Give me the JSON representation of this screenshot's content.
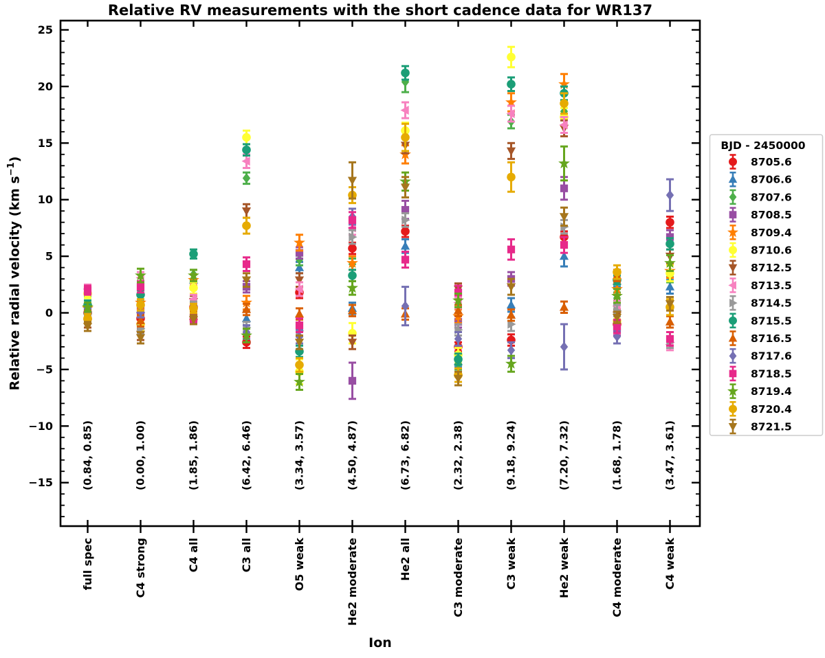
{
  "title": "Relative RV measurements with the short cadence data for WR137",
  "xlabel": "Ion",
  "ylabel": {
    "prefix": "Relative radial velocity (km s",
    "sup": "−1",
    "suffix": ")"
  },
  "legend": {
    "title": "BJD - 2450000",
    "entries": [
      {
        "label": "8705.6",
        "color": "#e41a1c",
        "marker": "circle"
      },
      {
        "label": "8706.6",
        "color": "#377eb8",
        "marker": "triangle-up"
      },
      {
        "label": "8707.6",
        "color": "#4daf4a",
        "marker": "diamond"
      },
      {
        "label": "8708.5",
        "color": "#984ea3",
        "marker": "square"
      },
      {
        "label": "8709.4",
        "color": "#ff7f00",
        "marker": "star"
      },
      {
        "label": "8710.6",
        "color": "#ffff33",
        "marker": "circle"
      },
      {
        "label": "8712.5",
        "color": "#a65628",
        "marker": "triangle-down"
      },
      {
        "label": "8713.5",
        "color": "#f781bf",
        "marker": "triangle-left"
      },
      {
        "label": "8714.5",
        "color": "#999999",
        "marker": "triangle-right"
      },
      {
        "label": "8715.5",
        "color": "#1b9e77",
        "marker": "circle"
      },
      {
        "label": "8716.5",
        "color": "#d95f02",
        "marker": "triangle-up"
      },
      {
        "label": "8717.6",
        "color": "#7570b3",
        "marker": "diamond"
      },
      {
        "label": "8718.5",
        "color": "#e7298a",
        "marker": "square"
      },
      {
        "label": "8719.4",
        "color": "#66a61e",
        "marker": "star"
      },
      {
        "label": "8720.4",
        "color": "#e6ab02",
        "marker": "circle"
      },
      {
        "label": "8721.5",
        "color": "#a6761d",
        "marker": "triangle-down"
      }
    ]
  },
  "chart_data": {
    "type": "scatter",
    "title": "Relative RV measurements with the short cadence data for WR137",
    "xlabel": "Ion",
    "ylabel": "Relative radial velocity (km s^-1)",
    "categories": [
      "full spec",
      "C4 strong",
      "C4 all",
      "C3 all",
      "O5 weak",
      "He2 moderate",
      "He2 all",
      "C3 moderate",
      "C3 weak",
      "He2 weak",
      "C4 moderate",
      "C4 weak"
    ],
    "annotations": [
      "(0.84, 0.85)",
      "(0.00, 1.00)",
      "(1.85, 1.86)",
      "(6.42, 6.46)",
      "(3.34, 3.57)",
      "(4.50, 4.87)",
      "(6.73, 6.82)",
      "(2.32, 2.38)",
      "(9.18, 9.24)",
      "(7.20, 7.32)",
      "(1.68, 1.78)",
      "(3.47, 3.61)"
    ],
    "ylim": [
      -18.8,
      25.8
    ],
    "yticks": [
      -15,
      -10,
      -5,
      0,
      5,
      10,
      15,
      20,
      25
    ],
    "grid": false,
    "legend_title": "BJD - 2450000",
    "legend_position": "right-outside",
    "series": [
      {
        "name": "8705.6",
        "color": "#e41a1c",
        "marker": "circle",
        "values": [
          0.0,
          -0.5,
          0.5,
          -2.6,
          1.8,
          5.7,
          7.2,
          -3.0,
          -2.4,
          6.7,
          -1.0,
          8.0
        ],
        "errors": [
          0.4,
          0.5,
          0.4,
          0.5,
          0.5,
          0.5,
          0.5,
          0.4,
          0.5,
          0.5,
          0.4,
          0.5
        ]
      },
      {
        "name": "8706.6",
        "color": "#377eb8",
        "marker": "triangle-up",
        "values": [
          0.2,
          0.3,
          2.9,
          -0.5,
          4.0,
          0.4,
          5.9,
          -4.3,
          0.7,
          5.0,
          2.8,
          2.3
        ],
        "errors": [
          0.4,
          0.5,
          0.5,
          0.6,
          0.5,
          0.5,
          0.6,
          0.5,
          0.6,
          0.9,
          0.5,
          0.6
        ]
      },
      {
        "name": "8707.6",
        "color": "#4daf4a",
        "marker": "diamond",
        "values": [
          1.9,
          1.5,
          3.4,
          11.9,
          4.7,
          4.3,
          20.4,
          -4.5,
          16.9,
          17.8,
          1.3,
          3.2
        ],
        "errors": [
          0.4,
          0.5,
          0.4,
          0.5,
          0.5,
          0.5,
          0.9,
          0.5,
          0.6,
          0.6,
          0.5,
          0.5
        ]
      },
      {
        "name": "8708.5",
        "color": "#984ea3",
        "marker": "square",
        "values": [
          0.3,
          0.2,
          -0.5,
          2.3,
          5.3,
          -6.0,
          9.1,
          -0.8,
          3.0,
          11.0,
          -1.5,
          6.7
        ],
        "errors": [
          0.4,
          0.5,
          0.4,
          0.5,
          0.5,
          1.6,
          0.8,
          0.5,
          0.6,
          1.0,
          0.5,
          0.6
        ]
      },
      {
        "name": "8709.4",
        "color": "#ff7f00",
        "marker": "star",
        "values": [
          0.4,
          0.9,
          2.9,
          0.9,
          6.2,
          4.4,
          14.0,
          -0.3,
          18.6,
          20.2,
          2.1,
          3.7
        ],
        "errors": [
          0.4,
          0.6,
          0.5,
          0.6,
          0.7,
          0.6,
          0.8,
          0.6,
          0.8,
          0.9,
          0.5,
          0.6
        ]
      },
      {
        "name": "8710.6",
        "color": "#ffff33",
        "marker": "circle",
        "values": [
          1.7,
          -1.0,
          2.2,
          15.5,
          -5.2,
          -1.8,
          16.1,
          -3.7,
          22.6,
          17.3,
          -0.7,
          3.5
        ],
        "errors": [
          0.4,
          0.6,
          0.5,
          0.6,
          1.1,
          0.9,
          0.7,
          0.6,
          0.9,
          0.8,
          0.6,
          0.7
        ]
      },
      {
        "name": "8712.5",
        "color": "#a65628",
        "marker": "triangle-down",
        "values": [
          -0.9,
          -1.9,
          1.0,
          9.0,
          2.9,
          -2.6,
          14.8,
          2.1,
          14.3,
          16.3,
          -0.2,
          5.0
        ],
        "errors": [
          0.4,
          0.5,
          0.5,
          0.6,
          0.6,
          0.6,
          0.7,
          0.5,
          0.7,
          0.7,
          0.5,
          0.6
        ]
      },
      {
        "name": "8713.5",
        "color": "#f781bf",
        "marker": "triangle-left",
        "values": [
          2.1,
          3.1,
          1.2,
          13.4,
          2.1,
          7.5,
          17.9,
          0.9,
          17.6,
          16.6,
          0.6,
          -2.8
        ],
        "errors": [
          0.4,
          0.5,
          0.4,
          0.6,
          0.6,
          0.6,
          0.7,
          0.5,
          0.7,
          0.7,
          0.5,
          0.5
        ]
      },
      {
        "name": "8714.5",
        "color": "#999999",
        "marker": "triangle-right",
        "values": [
          0.1,
          -1.4,
          0.6,
          -1.3,
          -1.6,
          6.7,
          8.2,
          -1.5,
          -1.0,
          7.6,
          0.2,
          -2.6
        ],
        "errors": [
          0.4,
          0.5,
          0.4,
          0.5,
          0.5,
          0.6,
          0.6,
          0.5,
          0.6,
          0.6,
          0.5,
          0.5
        ]
      },
      {
        "name": "8715.5",
        "color": "#1b9e77",
        "marker": "circle",
        "values": [
          0.7,
          1.6,
          5.2,
          14.4,
          -3.4,
          3.3,
          21.2,
          -4.1,
          20.2,
          19.4,
          2.9,
          6.1
        ],
        "errors": [
          0.4,
          0.4,
          0.4,
          0.5,
          0.5,
          0.5,
          0.6,
          0.5,
          0.6,
          0.6,
          0.4,
          0.5
        ]
      },
      {
        "name": "8716.5",
        "color": "#d95f02",
        "marker": "triangle-up",
        "values": [
          -0.2,
          -0.7,
          -0.3,
          0.3,
          -0.1,
          0.2,
          -0.1,
          0.2,
          -0.2,
          0.5,
          3.3,
          -0.8
        ],
        "errors": [
          0.4,
          0.5,
          0.4,
          0.5,
          0.5,
          0.5,
          0.5,
          0.5,
          0.5,
          0.5,
          0.5,
          0.5
        ]
      },
      {
        "name": "8717.6",
        "color": "#7570b3",
        "marker": "diamond",
        "values": [
          0.0,
          0.1,
          -0.1,
          -1.7,
          -2.1,
          8.5,
          0.6,
          -2.3,
          -3.3,
          -3.0,
          -2.1,
          10.4
        ],
        "errors": [
          0.4,
          0.5,
          0.4,
          0.6,
          0.6,
          0.7,
          1.7,
          0.6,
          0.7,
          2.0,
          0.6,
          1.4
        ]
      },
      {
        "name": "8718.5",
        "color": "#e7298a",
        "marker": "square",
        "values": [
          2.0,
          2.3,
          -0.4,
          4.3,
          -1.1,
          8.2,
          4.7,
          1.8,
          5.6,
          6.0,
          -1.2,
          -2.3
        ],
        "errors": [
          0.4,
          0.5,
          0.4,
          0.6,
          0.6,
          0.7,
          0.7,
          0.6,
          0.9,
          0.7,
          0.6,
          0.6
        ]
      },
      {
        "name": "8719.4",
        "color": "#66a61e",
        "marker": "star",
        "values": [
          0.5,
          3.3,
          3.3,
          -2.0,
          -6.1,
          2.2,
          11.6,
          1.1,
          -4.5,
          13.2,
          1.5,
          4.4
        ],
        "errors": [
          0.4,
          0.6,
          0.5,
          0.6,
          0.7,
          0.6,
          0.8,
          0.6,
          0.7,
          1.5,
          0.6,
          0.7
        ]
      },
      {
        "name": "8720.4",
        "color": "#e6ab02",
        "marker": "circle",
        "values": [
          -0.5,
          0.7,
          0.4,
          7.7,
          -4.6,
          10.4,
          15.5,
          -5.5,
          12.0,
          18.5,
          3.6,
          0.5
        ],
        "errors": [
          0.4,
          0.5,
          0.4,
          0.7,
          0.6,
          0.7,
          1.2,
          0.6,
          1.3,
          0.9,
          0.6,
          0.7
        ]
      },
      {
        "name": "8721.5",
        "color": "#a6761d",
        "marker": "triangle-down",
        "values": [
          -1.2,
          -2.2,
          -0.6,
          2.9,
          -2.6,
          11.7,
          11.1,
          -5.8,
          2.3,
          8.5,
          -0.4,
          0.8
        ],
        "errors": [
          0.4,
          0.5,
          0.4,
          0.6,
          0.6,
          1.6,
          0.9,
          0.6,
          0.7,
          0.8,
          0.5,
          0.6
        ]
      }
    ]
  }
}
